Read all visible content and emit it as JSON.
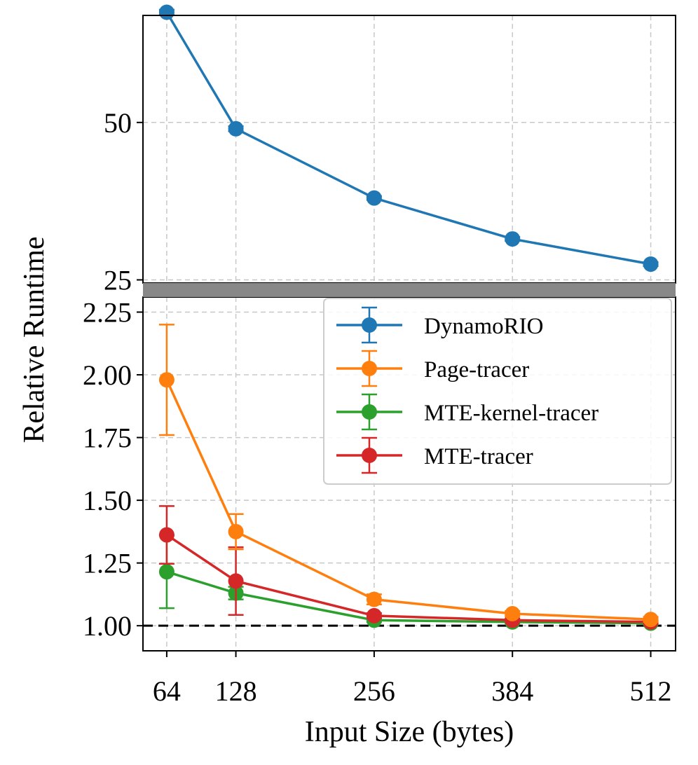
{
  "chart_data": {
    "type": "line",
    "xlabel": "Input Size (bytes)",
    "ylabel": "Relative Runtime",
    "x": [
      64,
      128,
      256,
      384,
      512
    ],
    "x_ticks": [
      "64",
      "128",
      "256",
      "384",
      "512"
    ],
    "xlim": [
      42,
      535
    ],
    "top_panel": {
      "ylim": [
        24.5,
        67
      ],
      "y_ticks": [
        50,
        25
      ],
      "y_tick_labels": [
        "50",
        "25"
      ]
    },
    "bottom_panel": {
      "ylim": [
        0.9,
        2.31
      ],
      "y_ticks": [
        2.25,
        2.0,
        1.75,
        1.5,
        1.25,
        1.0
      ],
      "y_tick_labels": [
        "2.25",
        "2.00",
        "1.75",
        "1.50",
        "1.25",
        "1.00"
      ],
      "reference_line": 1.0
    },
    "series": [
      {
        "name": "DynamoRIO",
        "color": "#1f77b4",
        "panel": "top",
        "values": [
          67.5,
          49.0,
          38.0,
          31.5,
          27.5
        ],
        "errors": [
          0.4,
          0.4,
          0.3,
          0.3,
          0.3
        ]
      },
      {
        "name": "Page-tracer",
        "color": "#ff7f0e",
        "panel": "bottom",
        "values": [
          1.98,
          1.375,
          1.105,
          1.048,
          1.025
        ],
        "errors": [
          0.22,
          0.07,
          0.02,
          0.01,
          0.01
        ]
      },
      {
        "name": "MTE-kernel-tracer",
        "color": "#2ca02c",
        "panel": "bottom",
        "values": [
          1.215,
          1.13,
          1.022,
          1.015,
          1.01
        ],
        "errors": [
          0.145,
          0.025,
          0.008,
          0.005,
          0.005
        ]
      },
      {
        "name": "MTE-tracer",
        "color": "#d62728",
        "panel": "bottom",
        "values": [
          1.362,
          1.178,
          1.04,
          1.022,
          1.015
        ],
        "errors": [
          0.115,
          0.135,
          0.01,
          0.006,
          0.005
        ]
      }
    ],
    "legend": {
      "position": "upper right (bottom panel)",
      "entries": [
        "DynamoRIO",
        "Page-tracer",
        "MTE-kernel-tracer",
        "MTE-tracer"
      ]
    },
    "grid": true,
    "break_bar_color": "#888888"
  }
}
